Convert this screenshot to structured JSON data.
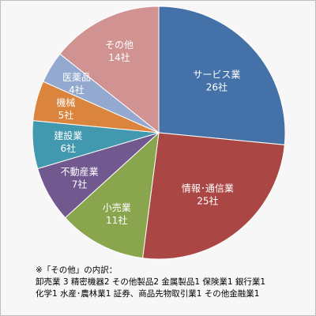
{
  "chart_data": {
    "type": "pie",
    "categories": [
      "サービス業",
      "情報･通信業",
      "小売業",
      "不動産業",
      "建設業",
      "機械",
      "医薬品",
      "その他"
    ],
    "values": [
      26,
      25,
      11,
      7,
      6,
      5,
      4,
      14
    ],
    "value_labels": [
      "26社",
      "25社",
      "11社",
      "7社",
      "6社",
      "5社",
      "4社",
      "14社"
    ],
    "colors": [
      "#4472a8",
      "#aa4643",
      "#89a54e",
      "#71588f",
      "#4198af",
      "#db843d",
      "#93a9cf",
      "#d19392"
    ],
    "start": "12 o'clock",
    "direction": "clockwise",
    "legend": "none"
  },
  "footnote": {
    "title": "※「その他」の内訳：",
    "line1": "卸売業 3 精密機器2 その他製品2 金属製品1 保険業1 銀行業1",
    "line2": "化学1 水産･農林業1 証券、商品先物取引業1 その他金融業1"
  }
}
